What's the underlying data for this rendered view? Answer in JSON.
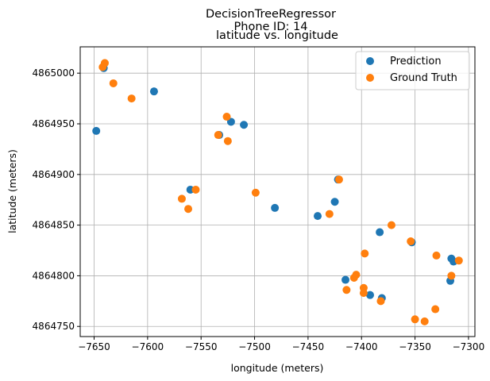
{
  "chart_data": {
    "type": "scatter",
    "suptitle_lines": [
      "DecisionTreeRegressor",
      "Phone ID: 14"
    ],
    "title": "latitude vs. longitude",
    "xlabel": "longitude (meters)",
    "ylabel": "latitude (meters)",
    "xlim": [
      -7663,
      -7294
    ],
    "ylim": [
      4864740,
      4865026
    ],
    "xticks": [
      -7650,
      -7600,
      -7550,
      -7500,
      -7450,
      -7400,
      -7350,
      -7300
    ],
    "yticks": [
      4864750,
      4864800,
      4864850,
      4864900,
      4864950,
      4865000
    ],
    "grid": true,
    "legend_position": "top-right",
    "series": [
      {
        "name": "Prediction",
        "color": "#1f77b4",
        "x": [
          -7648,
          -7641,
          -7594,
          -7560,
          -7533,
          -7522,
          -7510,
          -7481,
          -7441,
          -7425,
          -7422,
          -7415,
          -7392,
          -7383,
          -7381,
          -7353,
          -7316,
          -7314,
          -7317
        ],
        "y": [
          4864943,
          4865005,
          4864982,
          4864885,
          4864939,
          4864952,
          4864949,
          4864867,
          4864859,
          4864873,
          4864895,
          4864796,
          4864781,
          4864843,
          4864778,
          4864833,
          4864817,
          4864814,
          4864795
        ]
      },
      {
        "name": "Ground Truth",
        "color": "#ff7f0e",
        "x": [
          -7640,
          -7642,
          -7632,
          -7615,
          -7568,
          -7562,
          -7555,
          -7534,
          -7526,
          -7525,
          -7499,
          -7430,
          -7421,
          -7414,
          -7407,
          -7405,
          -7398,
          -7398,
          -7397,
          -7382,
          -7372,
          -7354,
          -7350,
          -7341,
          -7330,
          -7331,
          -7316,
          -7309
        ],
        "y": [
          4865010,
          4865006,
          4864990,
          4864975,
          4864876,
          4864866,
          4864885,
          4864939,
          4864957,
          4864933,
          4864882,
          4864861,
          4864895,
          4864786,
          4864798,
          4864801,
          4864788,
          4864783,
          4864822,
          4864775,
          4864850,
          4864834,
          4864757,
          4864755,
          4864820,
          4864767,
          4864800,
          4864815
        ]
      }
    ]
  }
}
